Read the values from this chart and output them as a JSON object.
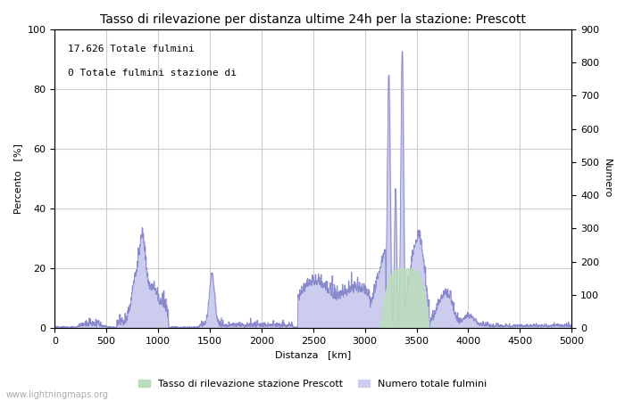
{
  "title": "Tasso di rilevazione per distanza ultime 24h per la stazione: Prescott",
  "xlabel": "Distanza   [km]",
  "ylabel_left": "Percento   [%]",
  "ylabel_right": "Numero",
  "annotation_line1": "17.626 Totale fulmini",
  "annotation_line2": "0 Totale fulmini stazione di",
  "legend_label1": "Tasso di rilevazione stazione Prescott",
  "legend_label2": "Numero totale fulmini",
  "watermark": "www.lightningmaps.org",
  "xlim": [
    0,
    5000
  ],
  "ylim_left": [
    0,
    100
  ],
  "ylim_right": [
    0,
    900
  ],
  "xticks": [
    0,
    500,
    1000,
    1500,
    2000,
    2500,
    3000,
    3500,
    4000,
    4500,
    5000
  ],
  "yticks_left": [
    0,
    20,
    40,
    60,
    80,
    100
  ],
  "yticks_right": [
    0,
    100,
    200,
    300,
    400,
    500,
    600,
    700,
    800,
    900
  ],
  "line_color": "#8888cc",
  "fill_green_color": "#bbddbb",
  "fill_blue_color": "#ccccee",
  "bg_color": "#ffffff",
  "grid_color": "#cccccc",
  "title_fontsize": 10,
  "label_fontsize": 8,
  "tick_fontsize": 8,
  "annotation_fontsize": 8
}
